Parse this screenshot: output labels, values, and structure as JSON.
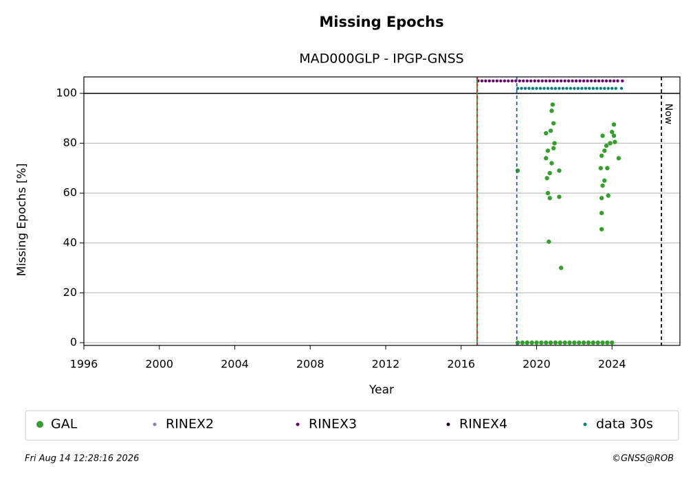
{
  "chart_data": {
    "type": "scatter",
    "title": "Missing Epochs",
    "subtitle": "MAD000GLP - IPGP-GNSS",
    "x_label": "Year",
    "y_label": "Missing Epochs [%]",
    "xlim": [
      1996,
      2027.6
    ],
    "ylim": [
      -1.1,
      106.6
    ],
    "xticks": [
      1996,
      2000,
      2004,
      2008,
      2012,
      2016,
      2020,
      2024
    ],
    "yticks": [
      0,
      20,
      40,
      60,
      80,
      100
    ],
    "grid": true,
    "hlines": [
      {
        "y": 100,
        "color": "#000000"
      }
    ],
    "vlines": [
      {
        "x": 2016.85,
        "color": "#2ca02c",
        "dashed": false
      },
      {
        "x": 2016.85,
        "color": "#d62728",
        "dashed": true
      },
      {
        "x": 2018.95,
        "color": "#1f5fa8",
        "dashed": true
      },
      {
        "x": 2026.62,
        "color": "#000000",
        "dashed": true,
        "label": "Now"
      }
    ],
    "legend": "bottom",
    "series": [
      {
        "name": "GAL",
        "color": "#33a02c",
        "x": [
          2019.0,
          2019.25,
          2019.5,
          2019.75,
          2020.0,
          2020.25,
          2020.5,
          2020.75,
          2021.0,
          2021.25,
          2021.5,
          2021.75,
          2022.0,
          2022.25,
          2022.5,
          2022.75,
          2023.0,
          2023.25,
          2023.5,
          2023.75,
          2024.0,
          2019.0,
          2020.5,
          2020.5,
          2020.55,
          2020.6,
          2020.65,
          2020.6,
          2020.7,
          2020.75,
          2020.8,
          2020.85,
          2020.9,
          2020.9,
          2020.8,
          2020.7,
          2020.95,
          2021.2,
          2021.2,
          2021.3,
          2023.4,
          2023.45,
          2023.5,
          2023.5,
          2023.45,
          2023.45,
          2023.45,
          2023.6,
          2023.6,
          2023.7,
          2023.75,
          2023.8,
          2023.9,
          2024.0,
          2024.1,
          2024.1,
          2024.15,
          2024.35
        ],
        "values": [
          0,
          0,
          0,
          0,
          0,
          0,
          0,
          0,
          0,
          0,
          0,
          0,
          0,
          0,
          0,
          0,
          0,
          0,
          0,
          0,
          0,
          69,
          84,
          74,
          66,
          60,
          40.5,
          77,
          58,
          85,
          93,
          95.5,
          88,
          78,
          72,
          68,
          80,
          69,
          58.5,
          30,
          70,
          75,
          83,
          63,
          58,
          52,
          45.5,
          65,
          77,
          79,
          70,
          59,
          80,
          84.5,
          87.5,
          83,
          80.5,
          74
        ]
      },
      {
        "name": "RINEX2",
        "color": "#8a7fc0",
        "x": [],
        "values": []
      },
      {
        "name": "RINEX3",
        "color": "#6a006a",
        "x": [
          2016.9,
          2017.1,
          2017.3,
          2017.5,
          2017.7,
          2017.9,
          2018.1,
          2018.3,
          2018.5,
          2018.7,
          2018.9,
          2019.1,
          2019.3,
          2019.5,
          2019.7,
          2019.9,
          2020.1,
          2020.3,
          2020.5,
          2020.7,
          2020.9,
          2021.1,
          2021.3,
          2021.5,
          2021.7,
          2021.9,
          2022.1,
          2022.3,
          2022.5,
          2022.7,
          2022.9,
          2023.1,
          2023.3,
          2023.5,
          2023.7,
          2023.9,
          2024.1,
          2024.3,
          2024.55
        ],
        "values": [
          105,
          105,
          105,
          105,
          105,
          105,
          105,
          105,
          105,
          105,
          105,
          105,
          105,
          105,
          105,
          105,
          105,
          105,
          105,
          105,
          105,
          105,
          105,
          105,
          105,
          105,
          105,
          105,
          105,
          105,
          105,
          105,
          105,
          105,
          105,
          105,
          105,
          105,
          105
        ]
      },
      {
        "name": "RINEX4",
        "color": "#2a0020",
        "x": [],
        "values": []
      },
      {
        "name": "data 30s",
        "color": "#007f7f",
        "x": [
          2019.0,
          2019.2,
          2019.4,
          2019.6,
          2019.8,
          2020.0,
          2020.2,
          2020.4,
          2020.6,
          2020.8,
          2021.0,
          2021.2,
          2021.4,
          2021.6,
          2021.8,
          2022.0,
          2022.2,
          2022.4,
          2022.6,
          2022.8,
          2023.0,
          2023.2,
          2023.4,
          2023.6,
          2023.8,
          2024.0,
          2024.2,
          2024.5
        ],
        "values": [
          102,
          102,
          102,
          102,
          102,
          102,
          102,
          102,
          102,
          102,
          102,
          102,
          102,
          102,
          102,
          102,
          102,
          102,
          102,
          102,
          102,
          102,
          102,
          102,
          102,
          102,
          102,
          102
        ]
      }
    ],
    "timestamp": "Fri Aug 14 12:28:16 2026",
    "credit": "©GNSS@ROB"
  }
}
